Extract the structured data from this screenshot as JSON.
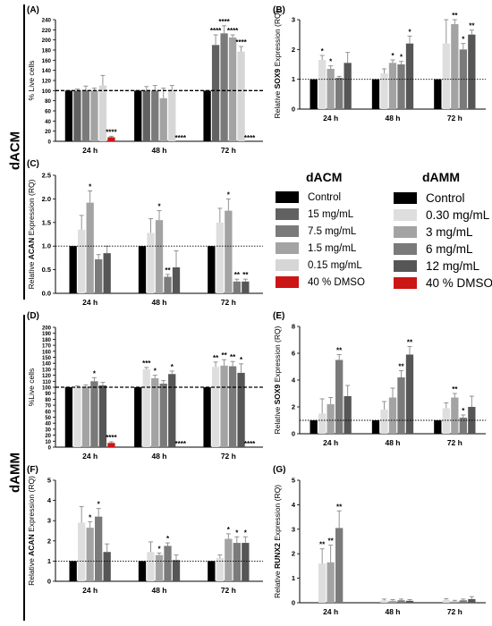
{
  "side_labels": {
    "top": "dACM",
    "bottom": "dAMM"
  },
  "legend": {
    "dacm_title": "dACM",
    "damm_title": "dAMM",
    "dacm_items": [
      {
        "label": "Control",
        "color": "#000000"
      },
      {
        "label": "15 mg/mL",
        "color": "#616161"
      },
      {
        "label": "7.5 mg/mL",
        "color": "#7a7a7a"
      },
      {
        "label": "1.5 mg/mL",
        "color": "#a3a3a3"
      },
      {
        "label": "0.15 mg/mL",
        "color": "#d6d6d6"
      },
      {
        "label": "40 % DMSO",
        "color": "#cc1515"
      }
    ],
    "damm_items": [
      {
        "label": "Control",
        "color": "#000000"
      },
      {
        "label": "0.30 mg/mL",
        "color": "#dedede"
      },
      {
        "label": "3 mg/mL",
        "color": "#a3a3a3"
      },
      {
        "label": "6 mg/mL",
        "color": "#7a7a7a"
      },
      {
        "label": "12 mg/mL",
        "color": "#565656"
      },
      {
        "label": "40 % DMSO",
        "color": "#cc1515"
      }
    ]
  },
  "chart_data": [
    {
      "panel": "(A)",
      "type": "bar",
      "ylabel": "% Live cells",
      "ylabel_bold": "",
      "ylim": [
        0,
        240
      ],
      "yticks": [
        0,
        20,
        40,
        60,
        80,
        100,
        120,
        140,
        160,
        180,
        200,
        220,
        240
      ],
      "reference_line": 100,
      "reference_style": "dashed",
      "categories": [
        "24 h",
        "48 h",
        "72 h"
      ],
      "colors": [
        "#000000",
        "#616161",
        "#7a7a7a",
        "#a3a3a3",
        "#d6d6d6",
        "#cc1515"
      ],
      "values": [
        [
          100,
          100,
          101,
          100,
          110,
          8
        ],
        [
          100,
          100,
          100,
          85,
          100,
          0
        ],
        [
          100,
          190,
          213,
          205,
          177,
          0
        ]
      ],
      "errors": [
        [
          0,
          3,
          8,
          5,
          20,
          2
        ],
        [
          0,
          8,
          10,
          20,
          10,
          0
        ],
        [
          0,
          20,
          15,
          5,
          10,
          0
        ]
      ],
      "sig": [
        [
          "",
          "",
          "",
          "",
          "",
          "****"
        ],
        [
          "",
          "",
          "",
          "",
          "",
          "****"
        ],
        [
          "",
          "****",
          "****",
          "****",
          "****",
          "****"
        ]
      ]
    },
    {
      "panel": "(B)",
      "type": "bar",
      "ylabel": "Relative ",
      "ylabel_bold": "SOX9",
      "ylabel_end": " Expression (RQ)",
      "ylim": [
        0,
        3
      ],
      "yticks": [
        0,
        1,
        2,
        3
      ],
      "reference_line": 1,
      "reference_style": "dotted",
      "categories": [
        "24 h",
        "48 h",
        "72 h"
      ],
      "colors": [
        "#000000",
        "#dedede",
        "#a3a3a3",
        "#7a7a7a",
        "#565656"
      ],
      "values": [
        [
          1,
          1.65,
          1.35,
          1.05,
          1.55
        ],
        [
          1,
          1.2,
          1.55,
          1.5,
          2.2
        ],
        [
          1,
          2.2,
          2.85,
          2.0,
          2.5
        ]
      ],
      "errors": [
        [
          0,
          0.15,
          0.1,
          0.05,
          0.35
        ],
        [
          0,
          0.15,
          0.1,
          0.1,
          0.25
        ],
        [
          0,
          0.8,
          0.15,
          0.2,
          0.15
        ]
      ],
      "sig": [
        [
          "",
          "*",
          "*",
          "",
          ""
        ],
        [
          "",
          "",
          "*",
          "*",
          "*"
        ],
        [
          "",
          "",
          "**",
          "*",
          "**"
        ]
      ]
    },
    {
      "panel": "(C)",
      "type": "bar",
      "ylabel": "Relative ",
      "ylabel_bold": "ACAN",
      "ylabel_end": " Expression (RQ)",
      "ylim": [
        0,
        2.5
      ],
      "yticks": [
        0,
        0.5,
        1.0,
        1.5,
        2.0,
        2.5
      ],
      "reference_line": 1,
      "reference_style": "dotted",
      "categories": [
        "24 h",
        "48 h",
        "72 h"
      ],
      "colors": [
        "#000000",
        "#dedede",
        "#a3a3a3",
        "#7a7a7a",
        "#565656"
      ],
      "values": [
        [
          1,
          1.35,
          1.92,
          0.72,
          0.85
        ],
        [
          1,
          1.28,
          1.55,
          0.35,
          0.55
        ],
        [
          1,
          1.5,
          1.75,
          0.25,
          0.25
        ]
      ],
      "errors": [
        [
          0,
          0.3,
          0.25,
          0.1,
          0.15
        ],
        [
          0,
          0.3,
          0.2,
          0.05,
          0.35
        ],
        [
          0,
          0.3,
          0.25,
          0.05,
          0.05
        ]
      ],
      "sig": [
        [
          "",
          "",
          "*",
          "",
          ""
        ],
        [
          "",
          "",
          "*",
          "**",
          ""
        ],
        [
          "",
          "",
          "*",
          "**",
          "**"
        ]
      ]
    },
    {
      "panel": "(D)",
      "type": "bar",
      "ylabel": "%Live cells",
      "ylabel_bold": "",
      "ylim": [
        0,
        200
      ],
      "yticks": [
        0,
        10,
        20,
        30,
        40,
        50,
        60,
        70,
        80,
        90,
        100,
        110,
        120,
        130,
        140,
        150,
        160,
        170,
        180,
        190,
        200
      ],
      "reference_line": 100,
      "reference_style": "dashed",
      "categories": [
        "24 h",
        "48 h",
        "72 h"
      ],
      "colors": [
        "#000000",
        "#dedede",
        "#a3a3a3",
        "#7a7a7a",
        "#565656",
        "#cc1515"
      ],
      "values": [
        [
          100,
          100,
          101,
          110,
          103,
          7
        ],
        [
          100,
          130,
          115,
          106,
          122,
          0
        ],
        [
          100,
          134,
          136,
          135,
          124,
          0
        ]
      ],
      "errors": [
        [
          0,
          2,
          3,
          6,
          5,
          2
        ],
        [
          0,
          3,
          5,
          5,
          5,
          0
        ],
        [
          0,
          8,
          10,
          8,
          15,
          0
        ]
      ],
      "sig": [
        [
          "",
          "",
          "",
          "*",
          "",
          "****"
        ],
        [
          "",
          "***",
          "*",
          "",
          "*",
          "****"
        ],
        [
          "",
          "**",
          "**",
          "**",
          "*",
          "****"
        ]
      ]
    },
    {
      "panel": "(E)",
      "type": "bar",
      "ylabel": "Relative ",
      "ylabel_bold": "SOX9",
      "ylabel_end": " Expression (RQ)",
      "ylim": [
        0,
        8
      ],
      "yticks": [
        0,
        2,
        4,
        6,
        8
      ],
      "reference_line": 1,
      "reference_style": "dotted",
      "categories": [
        "24 h",
        "48 h",
        "72 h"
      ],
      "colors": [
        "#000000",
        "#dedede",
        "#a3a3a3",
        "#7a7a7a",
        "#565656"
      ],
      "values": [
        [
          1,
          1.5,
          2.2,
          5.5,
          2.8
        ],
        [
          1,
          1.8,
          2.7,
          4.2,
          5.9
        ],
        [
          1,
          1.9,
          2.7,
          1.2,
          2.0
        ]
      ],
      "errors": [
        [
          0,
          1.1,
          0.5,
          0.4,
          0.8
        ],
        [
          0,
          0.6,
          0.7,
          0.5,
          0.6
        ],
        [
          0,
          0.4,
          0.3,
          0.2,
          0.8
        ]
      ],
      "sig": [
        [
          "",
          "",
          "",
          "**",
          ""
        ],
        [
          "",
          "",
          "",
          "**",
          "**"
        ],
        [
          "",
          "",
          "**",
          "*",
          ""
        ]
      ]
    },
    {
      "panel": "(F)",
      "type": "bar",
      "ylabel": "Relative ",
      "ylabel_bold": "ACAN",
      "ylabel_end": " Expression (RQ)",
      "ylim": [
        0,
        5
      ],
      "yticks": [
        0,
        1,
        2,
        3,
        4,
        5
      ],
      "reference_line": 1,
      "reference_style": "dotted",
      "categories": [
        "24 h",
        "48 h",
        "72 h"
      ],
      "colors": [
        "#000000",
        "#dedede",
        "#a3a3a3",
        "#7a7a7a",
        "#565656"
      ],
      "values": [
        [
          1,
          2.9,
          2.65,
          3.2,
          1.45
        ],
        [
          1,
          1.45,
          1.3,
          1.75,
          1.05
        ],
        [
          1,
          1.15,
          2.1,
          1.9,
          1.9
        ]
      ],
      "errors": [
        [
          0,
          0.8,
          0.3,
          0.4,
          0.4
        ],
        [
          0,
          0.5,
          0.1,
          0.15,
          0.25
        ],
        [
          0,
          0.15,
          0.25,
          0.3,
          0.3
        ]
      ],
      "sig": [
        [
          "",
          "",
          "*",
          "*",
          ""
        ],
        [
          "",
          "",
          "*",
          "*",
          ""
        ],
        [
          "",
          "",
          "*",
          "*",
          "*"
        ]
      ]
    },
    {
      "panel": "(G)",
      "type": "bar",
      "ylabel": "Relative ",
      "ylabel_bold": "RUNX2",
      "ylabel_end": " Expression (RQ)",
      "ylim": [
        0,
        5
      ],
      "yticks": [
        0,
        1,
        2,
        3,
        4,
        5
      ],
      "reference_line": null,
      "reference_style": "none",
      "categories": [
        "24 h",
        "48 h",
        "72 h"
      ],
      "colors": [
        "#000000",
        "#dedede",
        "#a3a3a3",
        "#7a7a7a",
        "#565656"
      ],
      "values": [
        [
          0,
          1.6,
          1.65,
          3.05,
          0
        ],
        [
          0,
          0.1,
          0.08,
          0.1,
          0.08
        ],
        [
          0,
          0.12,
          0.05,
          0.1,
          0.15
        ]
      ],
      "errors": [
        [
          0,
          0.6,
          0.7,
          0.7,
          0
        ],
        [
          0,
          0.05,
          0.05,
          0.05,
          0.05
        ],
        [
          0,
          0.05,
          0.05,
          0.05,
          0.1
        ]
      ],
      "sig": [
        [
          "",
          "**",
          "**",
          "**",
          ""
        ],
        [
          "",
          "",
          "",
          "",
          ""
        ],
        [
          "",
          "",
          "",
          "",
          ""
        ]
      ]
    }
  ]
}
